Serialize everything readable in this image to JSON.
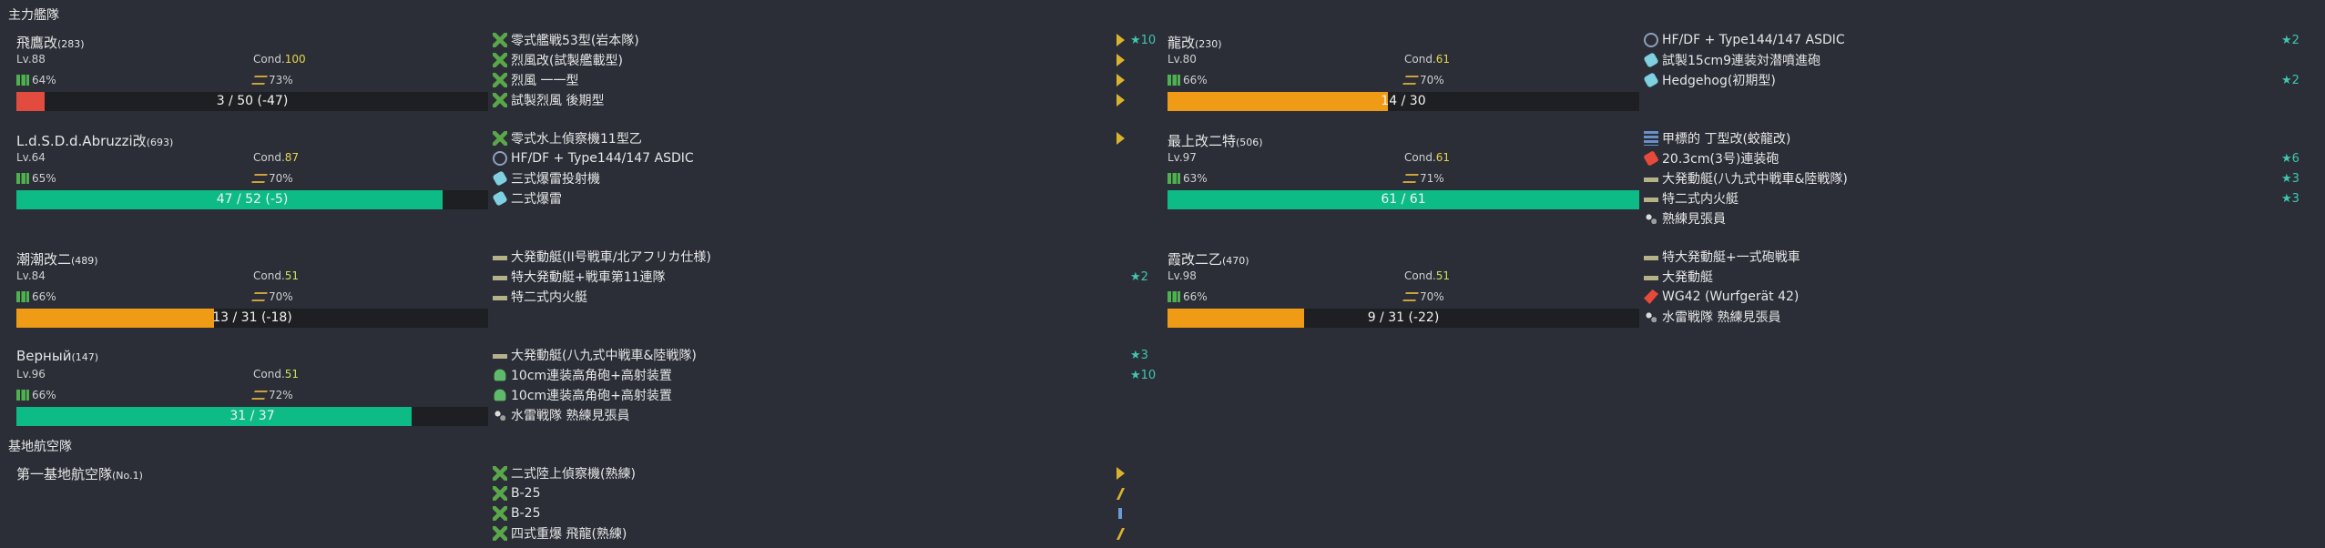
{
  "sections": {
    "fleet_title": "主力艦隊",
    "lbas_title": "基地航空隊"
  },
  "colors": {
    "hp_red": "#e24c3f",
    "hp_orange": "#f09b16",
    "hp_green": "#0dbb86"
  },
  "ships": [
    {
      "name": "飛鷹改",
      "id": "(283)",
      "lv": "Lv.88",
      "cond_label": "Cond.",
      "cond": "100",
      "fuel": "64%",
      "ammo": "73%",
      "hp": "3 / 50 (-47)",
      "hp_ratio": 0.06,
      "hp_color": "red",
      "equips": [
        {
          "icon": "plane-icon",
          "name": "零式艦戦53型(岩本隊)",
          "prof": "chevron",
          "imp": "★10"
        },
        {
          "icon": "plane-icon",
          "name": "烈風改(試製艦載型)",
          "prof": "chevron",
          "imp": ""
        },
        {
          "icon": "plane-icon",
          "name": "烈風 一一型",
          "prof": "chevron",
          "imp": ""
        },
        {
          "icon": "plane-icon",
          "name": "試製烈風 後期型",
          "prof": "chevron",
          "imp": ""
        }
      ]
    },
    {
      "name": "L.d.S.D.d.Abruzzi改",
      "id": "(693)",
      "lv": "Lv.64",
      "cond_label": "Cond.",
      "cond": "87",
      "fuel": "65%",
      "ammo": "70%",
      "hp": "47 / 52 (-5)",
      "hp_ratio": 0.904,
      "hp_color": "green",
      "equips": [
        {
          "icon": "plane-icon",
          "name": "零式水上偵察機11型乙",
          "prof": "chevron",
          "imp": ""
        },
        {
          "icon": "sonar-icon",
          "name": "HF/DF + Type144/147 ASDIC",
          "prof": "",
          "imp": ""
        },
        {
          "icon": "depth-charge-icon",
          "name": "三式爆雷投射機",
          "prof": "",
          "imp": ""
        },
        {
          "icon": "depth-charge-icon",
          "name": "二式爆雷",
          "prof": "",
          "imp": ""
        }
      ]
    },
    {
      "name": "潮潮改二",
      "id": "(489)",
      "lv": "Lv.84",
      "cond_label": "Cond.",
      "cond": "51",
      "fuel": "66%",
      "ammo": "70%",
      "hp": "13 / 31 (-18)",
      "hp_ratio": 0.419,
      "hp_color": "orange",
      "equips": [
        {
          "icon": "landing-craft-icon",
          "name": "大発動艇(II号戦車/北アフリカ仕様)",
          "prof": "",
          "imp": ""
        },
        {
          "icon": "landing-craft-icon",
          "name": "特大発動艇+戦車第11連隊",
          "prof": "",
          "imp": "★2"
        },
        {
          "icon": "landing-craft-icon",
          "name": "特二式内火艇",
          "prof": "",
          "imp": ""
        }
      ]
    },
    {
      "name": "Верный",
      "id": "(147)",
      "lv": "Lv.96",
      "cond_label": "Cond.",
      "cond": "51",
      "fuel": "66%",
      "ammo": "72%",
      "hp": "31 / 37",
      "hp_ratio": 0.838,
      "hp_color": "green",
      "equips": [
        {
          "icon": "landing-craft-icon",
          "name": "大発動艇(八九式中戦車&陸戦隊)",
          "prof": "",
          "imp": "★3"
        },
        {
          "icon": "aa-gun-icon",
          "name": "10cm連装高角砲+高射装置",
          "prof": "",
          "imp": "★10"
        },
        {
          "icon": "aa-gun-icon",
          "name": "10cm連装高角砲+高射装置",
          "prof": "",
          "imp": ""
        },
        {
          "icon": "crew-icon",
          "name": "水雷戦隊 熟練見張員",
          "prof": "",
          "imp": ""
        }
      ]
    },
    {
      "name": "龍改",
      "id": "(230)",
      "lv": "Lv.80",
      "cond_label": "Cond.",
      "cond": "61",
      "fuel": "66%",
      "ammo": "70%",
      "hp": "14 / 30",
      "hp_ratio": 0.467,
      "hp_color": "orange",
      "equips": [
        {
          "icon": "sonar-icon",
          "name": "HF/DF + Type144/147 ASDIC",
          "prof": "",
          "imp": "★2"
        },
        {
          "icon": "depth-charge-icon",
          "name": "試製15cm9連装対潜噴進砲",
          "prof": "",
          "imp": ""
        },
        {
          "icon": "depth-charge-icon",
          "name": "Hedgehog(初期型)",
          "prof": "",
          "imp": "★2"
        }
      ]
    },
    {
      "name": "最上改二特",
      "id": "(506)",
      "lv": "Lv.97",
      "cond_label": "Cond.",
      "cond": "61",
      "fuel": "63%",
      "ammo": "71%",
      "hp": "61 / 61",
      "hp_ratio": 1.0,
      "hp_color": "green",
      "equips": [
        {
          "icon": "radar-icon",
          "name": "甲標的 丁型改(蛟龍改)",
          "prof": "",
          "imp": ""
        },
        {
          "icon": "main-gun-icon",
          "name": "20.3cm(3号)連装砲",
          "prof": "",
          "imp": "★6"
        },
        {
          "icon": "landing-craft-icon",
          "name": "大発動艇(八九式中戦車&陸戦隊)",
          "prof": "",
          "imp": "★3"
        },
        {
          "icon": "landing-craft-icon",
          "name": "特二式内火艇",
          "prof": "",
          "imp": "★3"
        },
        {
          "icon": "crew-icon",
          "name": "熟練見張員",
          "prof": "",
          "imp": ""
        }
      ]
    },
    {
      "name": "霞改二乙",
      "id": "(470)",
      "lv": "Lv.98",
      "cond_label": "Cond.",
      "cond": "51",
      "fuel": "66%",
      "ammo": "70%",
      "hp": "9 / 31 (-22)",
      "hp_ratio": 0.29,
      "hp_color": "orange",
      "equips": [
        {
          "icon": "landing-craft-icon",
          "name": "特大発動艇+一式砲戦車",
          "prof": "",
          "imp": ""
        },
        {
          "icon": "landing-craft-icon",
          "name": "大発動艇",
          "prof": "",
          "imp": ""
        },
        {
          "icon": "wg42-icon",
          "name": "WG42 (Wurfgerät 42)",
          "prof": "",
          "imp": ""
        },
        {
          "icon": "crew-icon",
          "name": "水雷戦隊 熟練見張員",
          "prof": "",
          "imp": ""
        }
      ]
    }
  ],
  "lbas": {
    "name": "第一基地航空隊",
    "no": "(No.1)",
    "equips": [
      {
        "icon": "plane-icon",
        "name": "二式陸上偵察機(熟練)",
        "prof": "chevron"
      },
      {
        "icon": "plane-icon",
        "name": "B-25",
        "prof": "slash"
      },
      {
        "icon": "plane-icon",
        "name": "B-25",
        "prof": "bar"
      },
      {
        "icon": "plane-icon",
        "name": "四式重爆 飛龍(熟練)",
        "prof": "slash"
      }
    ]
  }
}
